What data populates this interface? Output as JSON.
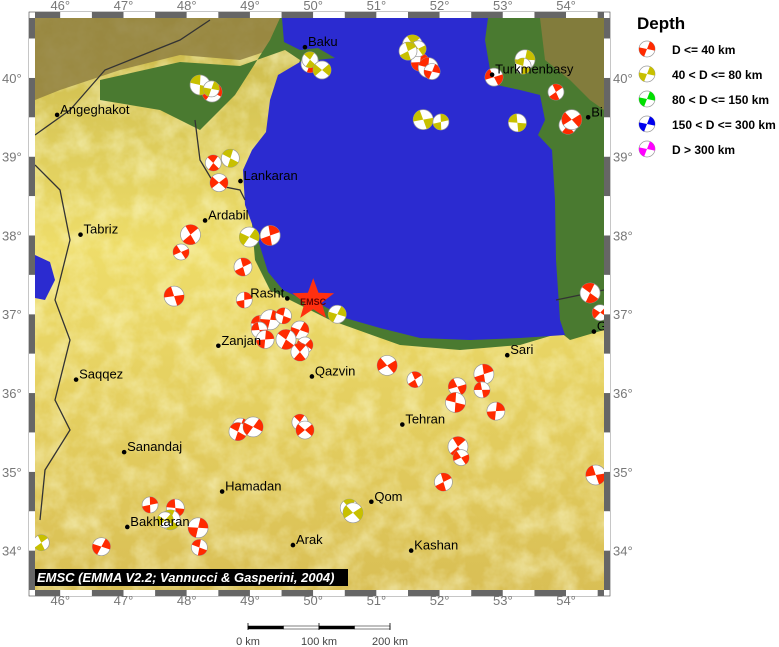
{
  "map": {
    "lon_range": [
      45.6,
      54.6
    ],
    "lat_range": [
      33.5,
      40.76
    ],
    "lon_ticks": [
      46,
      47,
      48,
      49,
      50,
      51,
      52,
      53,
      54
    ],
    "lat_ticks": [
      34,
      35,
      36,
      37,
      38,
      39,
      40
    ],
    "degree_symbol": "°",
    "colors": {
      "sea": "#2b2bd0",
      "lowland": "#4a7a30",
      "upland": "#e3cc5a",
      "mountain": "#8a7a40"
    }
  },
  "legend": {
    "title": "Depth",
    "items": [
      {
        "label": "D <= 40 km",
        "color": "#ff2a00"
      },
      {
        "label": "40 < D <= 80 km",
        "color": "#c8c000"
      },
      {
        "label": "80 < D <= 150 km",
        "color": "#00e000"
      },
      {
        "label": "150 < D <= 300 km",
        "color": "#0000ee"
      },
      {
        "label": "D > 300 km",
        "color": "#ff00ff"
      }
    ]
  },
  "epicenter": {
    "label": "EMSC",
    "lon": 50.0,
    "lat": 37.18,
    "color": "#ff3010"
  },
  "credit": "EMSC (EMMA V2.2; Vannucci & Gasperini, 2004)",
  "scale_bar": {
    "labels": [
      "0 km",
      "100 km",
      "200 km"
    ]
  },
  "cities": [
    {
      "name": "Baku",
      "lon": 49.87,
      "lat": 40.39
    },
    {
      "name": "Turkmenbasy",
      "lon": 52.83,
      "lat": 40.04
    },
    {
      "name": "Angeghakot",
      "lon": 45.95,
      "lat": 39.53
    },
    {
      "name": "Lankaran",
      "lon": 48.85,
      "lat": 38.69
    },
    {
      "name": "Ardabil",
      "lon": 48.29,
      "lat": 38.19
    },
    {
      "name": "Tabriz",
      "lon": 46.32,
      "lat": 38.01
    },
    {
      "name": "Rasht",
      "lon": 49.59,
      "lat": 37.2
    },
    {
      "name": "Zanjan",
      "lon": 48.5,
      "lat": 36.6
    },
    {
      "name": "Qazvin",
      "lon": 49.98,
      "lat": 36.21
    },
    {
      "name": "Sari",
      "lon": 53.07,
      "lat": 36.48
    },
    {
      "name": "Saqqez",
      "lon": 46.25,
      "lat": 36.17
    },
    {
      "name": "Tehran",
      "lon": 51.41,
      "lat": 35.6
    },
    {
      "name": "Sanandaj",
      "lon": 47.01,
      "lat": 35.25
    },
    {
      "name": "Hamadan",
      "lon": 48.56,
      "lat": 34.75
    },
    {
      "name": "Qom",
      "lon": 50.92,
      "lat": 34.62
    },
    {
      "name": "Bakhtaran",
      "lon": 47.06,
      "lat": 34.3
    },
    {
      "name": "Arak",
      "lon": 49.68,
      "lat": 34.07
    },
    {
      "name": "Kashan",
      "lon": 51.55,
      "lat": 34.0
    },
    {
      "name": "Bi",
      "lon": 54.35,
      "lat": 39.5
    },
    {
      "name": "G",
      "lon": 54.44,
      "lat": 36.78
    }
  ],
  "events": [
    {
      "lon": 51.57,
      "lat": 40.36,
      "depth": 0
    },
    {
      "lon": 51.69,
      "lat": 40.2,
      "depth": 0
    },
    {
      "lon": 51.82,
      "lat": 40.13,
      "depth": 0
    },
    {
      "lon": 51.88,
      "lat": 40.08,
      "depth": 0
    },
    {
      "lon": 49.95,
      "lat": 40.18,
      "depth": 0
    },
    {
      "lon": 48.4,
      "lat": 39.82,
      "depth": 0
    },
    {
      "lon": 48.42,
      "lat": 38.92,
      "depth": 0
    },
    {
      "lon": 48.51,
      "lat": 38.67,
      "depth": 0
    },
    {
      "lon": 48.06,
      "lat": 38.01,
      "depth": 0
    },
    {
      "lon": 47.91,
      "lat": 37.79,
      "depth": 0
    },
    {
      "lon": 48.89,
      "lat": 37.6,
      "depth": 0
    },
    {
      "lon": 47.8,
      "lat": 37.23,
      "depth": 0
    },
    {
      "lon": 48.91,
      "lat": 37.18,
      "depth": 0
    },
    {
      "lon": 49.16,
      "lat": 36.87,
      "depth": 0
    },
    {
      "lon": 49.32,
      "lat": 36.93,
      "depth": 0
    },
    {
      "lon": 49.53,
      "lat": 36.98,
      "depth": 0
    },
    {
      "lon": 49.79,
      "lat": 36.8,
      "depth": 0
    },
    {
      "lon": 49.57,
      "lat": 36.68,
      "depth": 0
    },
    {
      "lon": 49.87,
      "lat": 36.61,
      "depth": 0
    },
    {
      "lon": 49.79,
      "lat": 36.52,
      "depth": 0
    },
    {
      "lon": 51.17,
      "lat": 36.35,
      "depth": 0
    },
    {
      "lon": 51.61,
      "lat": 36.17,
      "depth": 0
    },
    {
      "lon": 52.28,
      "lat": 36.08,
      "depth": 0
    },
    {
      "lon": 52.7,
      "lat": 36.24,
      "depth": 0
    },
    {
      "lon": 52.67,
      "lat": 36.04,
      "depth": 0
    },
    {
      "lon": 52.89,
      "lat": 35.77,
      "depth": 0
    },
    {
      "lon": 52.25,
      "lat": 35.88,
      "depth": 0
    },
    {
      "lon": 48.85,
      "lat": 35.58,
      "depth": 0
    },
    {
      "lon": 48.81,
      "lat": 35.51,
      "depth": 0
    },
    {
      "lon": 49.05,
      "lat": 35.57,
      "depth": 0
    },
    {
      "lon": 49.79,
      "lat": 35.63,
      "depth": 0
    },
    {
      "lon": 49.87,
      "lat": 35.53,
      "depth": 0
    },
    {
      "lon": 52.29,
      "lat": 35.32,
      "depth": 0
    },
    {
      "lon": 52.34,
      "lat": 35.18,
      "depth": 0
    },
    {
      "lon": 52.06,
      "lat": 34.87,
      "depth": 0
    },
    {
      "lon": 54.47,
      "lat": 34.96,
      "depth": 0
    },
    {
      "lon": 47.42,
      "lat": 34.58,
      "depth": 0
    },
    {
      "lon": 47.82,
      "lat": 34.54,
      "depth": 0
    },
    {
      "lon": 48.18,
      "lat": 34.29,
      "depth": 0
    },
    {
      "lon": 48.2,
      "lat": 34.04,
      "depth": 0
    },
    {
      "lon": 46.65,
      "lat": 34.05,
      "depth": 0
    },
    {
      "lon": 54.38,
      "lat": 37.27,
      "depth": 0
    },
    {
      "lon": 54.54,
      "lat": 37.02,
      "depth": 0
    },
    {
      "lon": 54.03,
      "lat": 39.4,
      "depth": 0
    },
    {
      "lon": 54.09,
      "lat": 39.47,
      "depth": 0
    },
    {
      "lon": 53.84,
      "lat": 39.82,
      "depth": 0
    },
    {
      "lon": 52.86,
      "lat": 40.01,
      "depth": 0
    },
    {
      "lon": 49.32,
      "lat": 38.0,
      "depth": 0
    },
    {
      "lon": 49.15,
      "lat": 36.8,
      "depth": 0
    },
    {
      "lon": 49.24,
      "lat": 36.68,
      "depth": 0
    },
    {
      "lon": 48.21,
      "lat": 39.91,
      "depth": 1
    },
    {
      "lon": 48.39,
      "lat": 39.86,
      "depth": 1
    },
    {
      "lon": 48.69,
      "lat": 38.98,
      "depth": 1
    },
    {
      "lon": 48.99,
      "lat": 37.98,
      "depth": 1
    },
    {
      "lon": 49.95,
      "lat": 40.23,
      "depth": 1
    },
    {
      "lon": 50.14,
      "lat": 40.1,
      "depth": 1
    },
    {
      "lon": 51.57,
      "lat": 40.42,
      "depth": 1
    },
    {
      "lon": 51.66,
      "lat": 40.37,
      "depth": 1
    },
    {
      "lon": 51.5,
      "lat": 40.34,
      "depth": 1
    },
    {
      "lon": 51.74,
      "lat": 39.47,
      "depth": 1
    },
    {
      "lon": 52.02,
      "lat": 39.44,
      "depth": 1
    },
    {
      "lon": 53.23,
      "lat": 39.43,
      "depth": 1
    },
    {
      "lon": 53.35,
      "lat": 40.23,
      "depth": 1
    },
    {
      "lon": 53.32,
      "lat": 40.15,
      "depth": 1
    },
    {
      "lon": 50.38,
      "lat": 37.0,
      "depth": 1
    },
    {
      "lon": 47.74,
      "lat": 34.39,
      "depth": 1
    },
    {
      "lon": 47.66,
      "lat": 34.39,
      "depth": 1
    },
    {
      "lon": 50.57,
      "lat": 34.54,
      "depth": 1
    },
    {
      "lon": 50.63,
      "lat": 34.48,
      "depth": 1
    },
    {
      "lon": 45.7,
      "lat": 34.1,
      "depth": 1
    }
  ]
}
